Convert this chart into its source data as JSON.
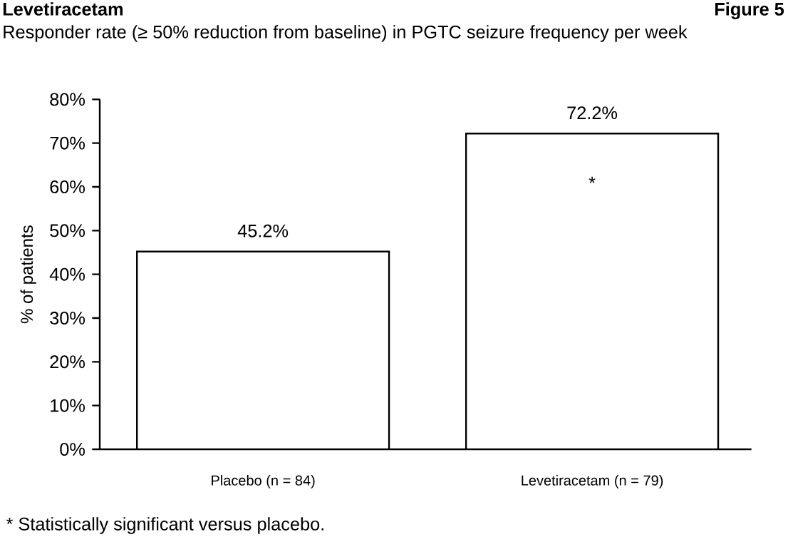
{
  "chart_data": {
    "type": "bar",
    "title": "Levetiracetam",
    "subtitle": "Responder rate (≥ 50% reduction from baseline) in PGTC seizure frequency per week",
    "ylabel": "% of patients",
    "categories": [
      "Placebo (n = 84)",
      "Levetiracetam (n = 79)"
    ],
    "values": [
      45.2,
      72.2
    ],
    "value_labels": [
      "45.2%",
      "72.2%"
    ],
    "color": "#ffffff",
    "ylim": [
      0,
      80
    ],
    "yticks": [
      {
        "value": 0,
        "label": "0%"
      },
      {
        "value": 10,
        "label": "10%"
      },
      {
        "value": 20,
        "label": "20%"
      },
      {
        "value": 30,
        "label": "30%"
      },
      {
        "value": 40,
        "label": "40%"
      },
      {
        "value": 50,
        "label": "50%"
      },
      {
        "value": 60,
        "label": "60%"
      },
      {
        "value": 70,
        "label": "70%"
      },
      {
        "value": 80,
        "label": "80%"
      }
    ],
    "grid": false,
    "annotations": [
      "Figure 5",
      "*",
      "* Statistically significant versus placebo."
    ]
  }
}
